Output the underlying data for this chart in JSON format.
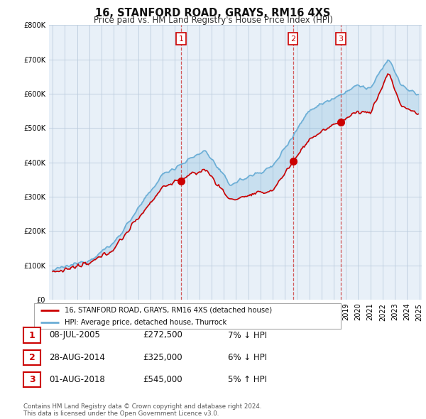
{
  "title": "16, STANFORD ROAD, GRAYS, RM16 4XS",
  "subtitle": "Price paid vs. HM Land Registry's House Price Index (HPI)",
  "legend_line1": "16, STANFORD ROAD, GRAYS, RM16 4XS (detached house)",
  "legend_line2": "HPI: Average price, detached house, Thurrock",
  "footnote": "Contains HM Land Registry data © Crown copyright and database right 2024.\nThis data is licensed under the Open Government Licence v3.0.",
  "transactions": [
    {
      "num": 1,
      "date": "08-JUL-2005",
      "price": "£272,500",
      "hpi": "7% ↓ HPI",
      "year": 2005.52,
      "price_val": 272500
    },
    {
      "num": 2,
      "date": "28-AUG-2014",
      "price": "£325,000",
      "hpi": "6% ↓ HPI",
      "year": 2014.66,
      "price_val": 325000
    },
    {
      "num": 3,
      "date": "01-AUG-2018",
      "price": "£545,000",
      "hpi": "5% ↑ HPI",
      "year": 2018.58,
      "price_val": 545000
    }
  ],
  "ylim": [
    0,
    800000
  ],
  "yticks": [
    0,
    100000,
    200000,
    300000,
    400000,
    500000,
    600000,
    700000,
    800000
  ],
  "red_color": "#cc0000",
  "blue_color": "#6baed6",
  "fill_color": "#ddeeff",
  "vline_color": "#cc3333",
  "bg_color": "#ffffff",
  "chart_bg": "#e8f0f8",
  "grid_color": "#bbccdd"
}
